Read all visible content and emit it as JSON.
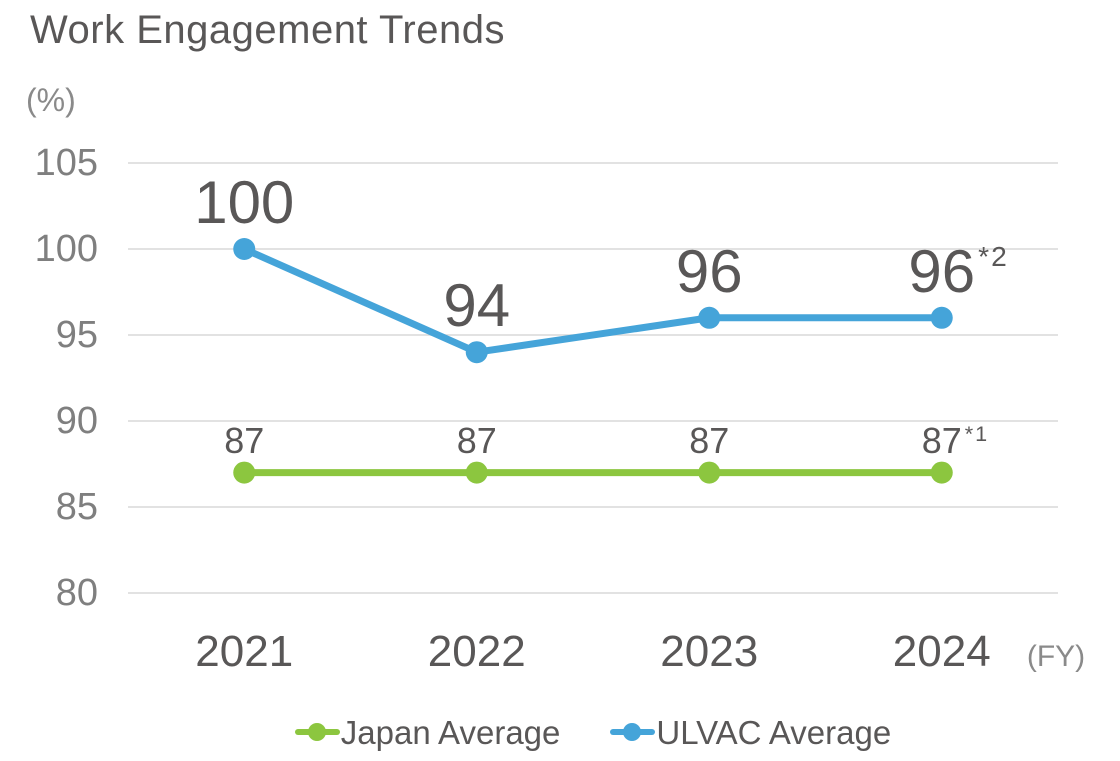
{
  "chart_data": {
    "type": "line",
    "title": "Work Engagement Trends",
    "ylabel": "(%)",
    "xlabel": "(FY)",
    "categories": [
      "2021",
      "2022",
      "2023",
      "2024"
    ],
    "yticks": [
      105,
      100,
      95,
      90,
      85,
      80
    ],
    "ylim": [
      80,
      105
    ],
    "grid": "horizontal",
    "legend_position": "bottom",
    "colors": {
      "japan_average": "#8cc63f",
      "ulvac_average": "#45a4d9",
      "gridline": "#d9d9d9",
      "text_dark": "#595757",
      "text_gray": "#7f7f7f"
    },
    "series": [
      {
        "name": "Japan Average",
        "color": "#8cc63f",
        "values": [
          87,
          87,
          87,
          87
        ],
        "point_labels": [
          "87",
          "87",
          "87",
          "87"
        ],
        "footnotes": [
          "",
          "",
          "",
          "*1"
        ],
        "label_style": "small"
      },
      {
        "name": "ULVAC Average",
        "color": "#45a4d9",
        "values": [
          100,
          94,
          96,
          96
        ],
        "point_labels": [
          "100",
          "94",
          "96",
          "96"
        ],
        "footnotes": [
          "",
          "",
          "",
          "*2"
        ],
        "label_style": "large"
      }
    ]
  }
}
